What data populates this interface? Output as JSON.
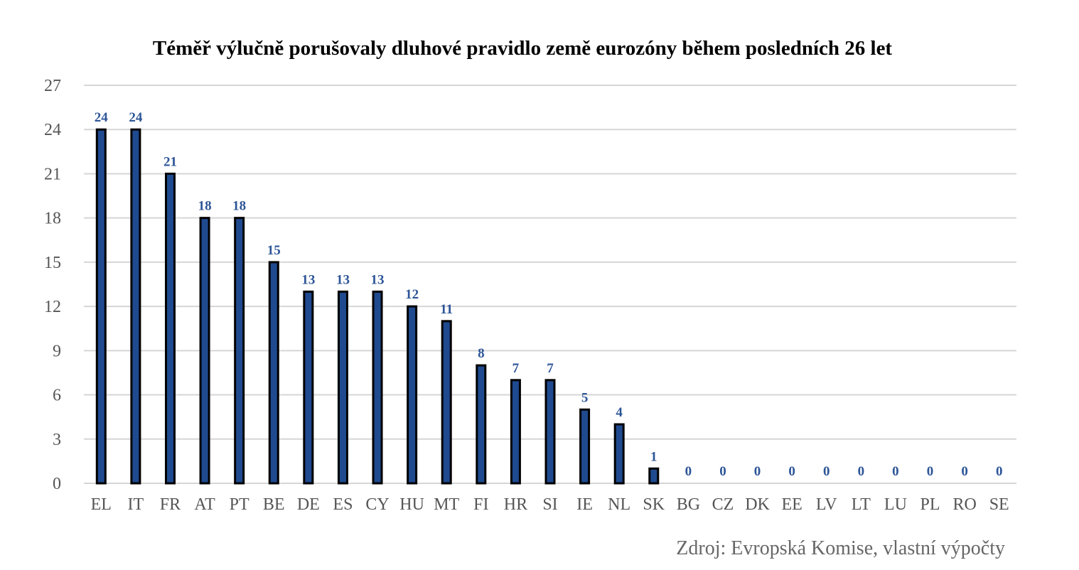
{
  "chart_data": {
    "type": "bar",
    "title": "Téměř výlučně porušovaly dluhové pravidlo země eurozóny během posledních 26 let",
    "xlabel": "",
    "ylabel": "",
    "ylim": [
      0,
      27
    ],
    "yticks": [
      0,
      3,
      6,
      9,
      12,
      15,
      18,
      21,
      24,
      27
    ],
    "grid": true,
    "categories": [
      "EL",
      "IT",
      "FR",
      "AT",
      "PT",
      "BE",
      "DE",
      "ES",
      "CY",
      "HU",
      "MT",
      "FI",
      "HR",
      "SI",
      "IE",
      "NL",
      "SK",
      "BG",
      "CZ",
      "DK",
      "EE",
      "LV",
      "LT",
      "LU",
      "PL",
      "RO",
      "SE"
    ],
    "values": [
      24,
      24,
      21,
      18,
      18,
      15,
      13,
      13,
      13,
      12,
      11,
      8,
      7,
      7,
      5,
      4,
      1,
      0,
      0,
      0,
      0,
      0,
      0,
      0,
      0,
      0,
      0
    ],
    "source": "Zdroj: Evropská Komise, vlastní výpočty",
    "colors": {
      "bar": "#1f4a8f",
      "bar_outline": "#000000",
      "data_label": "#2d5597",
      "grid": "#d6d6d6"
    }
  }
}
